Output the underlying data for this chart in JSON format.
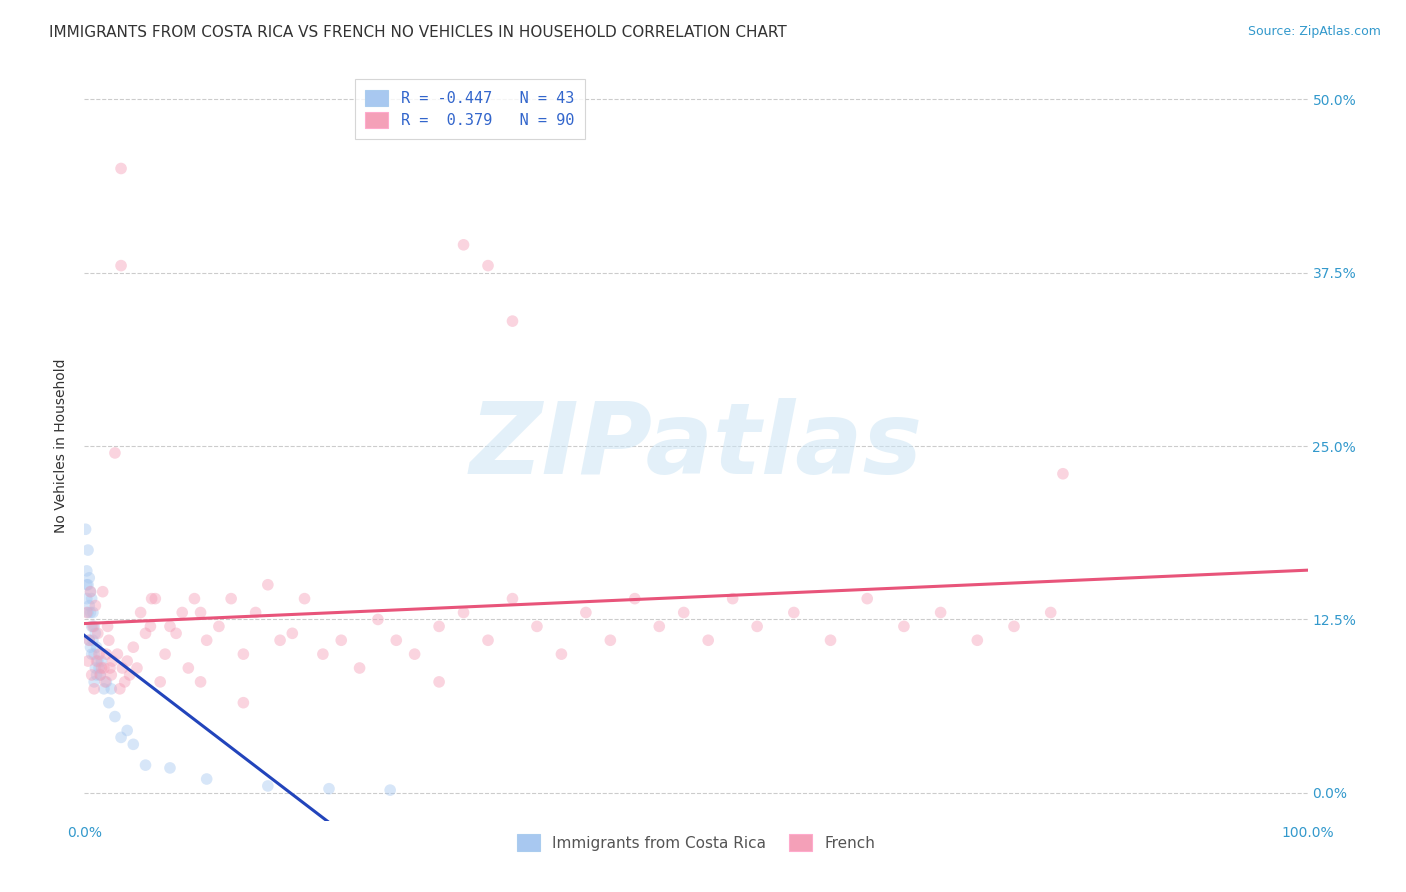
{
  "title": "IMMIGRANTS FROM COSTA RICA VS FRENCH NO VEHICLES IN HOUSEHOLD CORRELATION CHART",
  "source": "Source: ZipAtlas.com",
  "ylabel": "No Vehicles in Household",
  "xlim": [
    0.0,
    1.0
  ],
  "ylim": [
    -0.02,
    0.52
  ],
  "ytick_positions": [
    0.0,
    0.125,
    0.25,
    0.375,
    0.5
  ],
  "ytick_labels": [
    "0.0%",
    "12.5%",
    "25.0%",
    "37.5%",
    "50.0%"
  ],
  "grid_color": "#cccccc",
  "background_color": "#ffffff",
  "watermark_text": "ZIPatlas",
  "title_fontsize": 11,
  "axis_label_fontsize": 10,
  "tick_fontsize": 10,
  "source_fontsize": 9,
  "marker_size": 70,
  "marker_alpha": 0.45,
  "line_width": 2.2,
  "series": [
    {
      "name": "Immigrants from Costa Rica",
      "R": "-0.447",
      "N": "43",
      "color": "#a8c8f0",
      "line_color": "#2244bb",
      "x": [
        0.001,
        0.002,
        0.002,
        0.002,
        0.003,
        0.003,
        0.003,
        0.004,
        0.004,
        0.004,
        0.005,
        0.005,
        0.005,
        0.006,
        0.006,
        0.006,
        0.007,
        0.007,
        0.008,
        0.008,
        0.008,
        0.009,
        0.009,
        0.01,
        0.01,
        0.011,
        0.012,
        0.013,
        0.014,
        0.016,
        0.018,
        0.02,
        0.022,
        0.025,
        0.03,
        0.035,
        0.04,
        0.05,
        0.07,
        0.1,
        0.15,
        0.2,
        0.25
      ],
      "y": [
        0.19,
        0.16,
        0.15,
        0.14,
        0.175,
        0.15,
        0.13,
        0.155,
        0.135,
        0.11,
        0.145,
        0.13,
        0.105,
        0.14,
        0.12,
        0.1,
        0.13,
        0.11,
        0.12,
        0.1,
        0.08,
        0.115,
        0.09,
        0.105,
        0.085,
        0.095,
        0.09,
        0.085,
        0.095,
        0.075,
        0.08,
        0.065,
        0.075,
        0.055,
        0.04,
        0.045,
        0.035,
        0.02,
        0.018,
        0.01,
        0.005,
        0.003,
        0.002
      ]
    },
    {
      "name": "French",
      "R": "0.379",
      "N": "90",
      "color": "#f4a0b8",
      "line_color": "#e8547a",
      "x": [
        0.002,
        0.003,
        0.004,
        0.005,
        0.006,
        0.007,
        0.008,
        0.009,
        0.01,
        0.011,
        0.012,
        0.013,
        0.014,
        0.015,
        0.016,
        0.017,
        0.018,
        0.019,
        0.02,
        0.021,
        0.022,
        0.023,
        0.025,
        0.027,
        0.029,
        0.031,
        0.033,
        0.035,
        0.037,
        0.04,
        0.043,
        0.046,
        0.05,
        0.054,
        0.058,
        0.062,
        0.066,
        0.07,
        0.075,
        0.08,
        0.085,
        0.09,
        0.095,
        0.1,
        0.11,
        0.12,
        0.13,
        0.14,
        0.15,
        0.16,
        0.17,
        0.18,
        0.195,
        0.21,
        0.225,
        0.24,
        0.255,
        0.27,
        0.29,
        0.31,
        0.33,
        0.35,
        0.37,
        0.39,
        0.41,
        0.43,
        0.45,
        0.47,
        0.49,
        0.51,
        0.53,
        0.55,
        0.58,
        0.61,
        0.64,
        0.67,
        0.7,
        0.73,
        0.76,
        0.79,
        0.31,
        0.33,
        0.35,
        0.095,
        0.13,
        0.03,
        0.03,
        0.055,
        0.29,
        0.8
      ],
      "y": [
        0.13,
        0.095,
        0.11,
        0.145,
        0.085,
        0.12,
        0.075,
        0.135,
        0.095,
        0.115,
        0.1,
        0.085,
        0.09,
        0.145,
        0.09,
        0.08,
        0.1,
        0.12,
        0.11,
        0.09,
        0.085,
        0.095,
        0.245,
        0.1,
        0.075,
        0.09,
        0.08,
        0.095,
        0.085,
        0.105,
        0.09,
        0.13,
        0.115,
        0.12,
        0.14,
        0.08,
        0.1,
        0.12,
        0.115,
        0.13,
        0.09,
        0.14,
        0.13,
        0.11,
        0.12,
        0.14,
        0.1,
        0.13,
        0.15,
        0.11,
        0.115,
        0.14,
        0.1,
        0.11,
        0.09,
        0.125,
        0.11,
        0.1,
        0.12,
        0.13,
        0.11,
        0.14,
        0.12,
        0.1,
        0.13,
        0.11,
        0.14,
        0.12,
        0.13,
        0.11,
        0.14,
        0.12,
        0.13,
        0.11,
        0.14,
        0.12,
        0.13,
        0.11,
        0.12,
        0.13,
        0.395,
        0.38,
        0.34,
        0.08,
        0.065,
        0.45,
        0.38,
        0.14,
        0.08,
        0.23
      ]
    }
  ],
  "legend_box_colors": [
    "#a8c8f0",
    "#f4a0b8"
  ],
  "legend_R_values": [
    "-0.447",
    " 0.379"
  ],
  "legend_N_values": [
    "43",
    "90"
  ]
}
